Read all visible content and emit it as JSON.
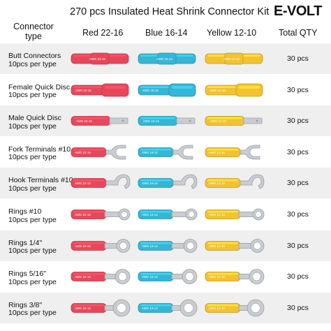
{
  "title": "270 pcs Insulated Heat Shrink Connector Kit",
  "brand": "E-VOLT",
  "headers": {
    "type_line1": "Connector",
    "type_line2": "type",
    "red": "Red 22-16",
    "blue": "Blue 16-14",
    "yellow": "Yellow 12-10",
    "qty": "Total QTY"
  },
  "colors": {
    "red": "#e8475a",
    "blue": "#35b6d6",
    "yellow": "#f2c230",
    "metal": "#c9ccd0"
  },
  "rows": [
    {
      "name": "Butt Connectors",
      "sub": "10pcs per type",
      "shape": "butt",
      "qty": "30 pcs",
      "awg": [
        "AWG 22-16",
        "AWG 16-14",
        "AWG 12-10"
      ]
    },
    {
      "name": "Female Quick Disc",
      "sub": "10pcs per type",
      "shape": "female",
      "qty": "30 pcs",
      "awg": [
        "AWG 22-16",
        "AWG 16-14",
        "AWG 12-10"
      ]
    },
    {
      "name": "Male Quick Disc",
      "sub": "10pcs per type",
      "shape": "male",
      "qty": "30 pcs",
      "awg": [
        "AWG 22-16",
        "AWG 16-14",
        "AWG 12-10"
      ]
    },
    {
      "name": "Fork Terminals #10",
      "sub": "10pcs per type",
      "shape": "fork",
      "qty": "30 pcs",
      "awg": [
        "AWG 22-16",
        "AWG 16-14",
        "AWG 12-10"
      ]
    },
    {
      "name": "Hook Terminals #10",
      "sub": "10pcs per type",
      "shape": "hook",
      "qty": "30 pcs",
      "awg": [
        "AWG 22-16",
        "AWG 16-14",
        "AWG 12-10"
      ]
    },
    {
      "name": "Rings #10",
      "sub": "10pcs per type",
      "shape": "ring10",
      "qty": "30 pcs",
      "awg": [
        "AWG 22-16",
        "AWG 16-14",
        "AWG 12-10"
      ]
    },
    {
      "name": "Rings 1/4\"",
      "sub": "10pcs per type",
      "shape": "ring14",
      "qty": "30 pcs",
      "awg": [
        "AWG 22-16",
        "AWG 16-14",
        "AWG 12-10"
      ]
    },
    {
      "name": "Rings 5/16\"",
      "sub": "10pcs per type",
      "shape": "ring516",
      "qty": "30 pcs",
      "awg": [
        "AWG 22-16",
        "AWG 16-14",
        "AWG 12-10"
      ]
    },
    {
      "name": "Rings 3/8\"",
      "sub": "10pcs per type",
      "shape": "ring38",
      "qty": "30 pcs",
      "awg": [
        "AWG 22-16",
        "AWG 16-14",
        "AWG 12-10"
      ]
    }
  ]
}
